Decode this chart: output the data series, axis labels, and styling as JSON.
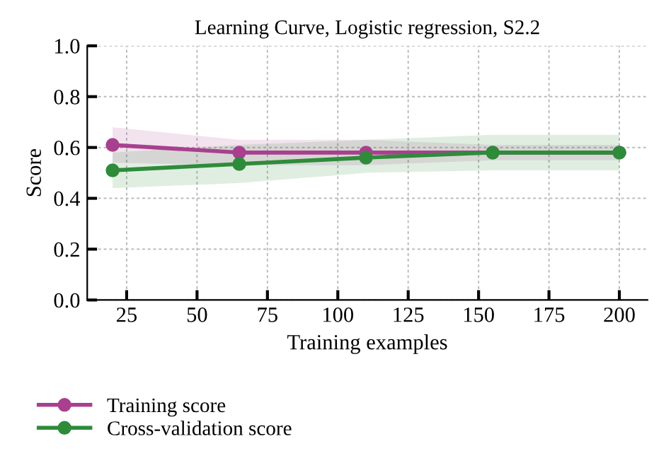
{
  "chart_data": {
    "type": "line",
    "title": "Learning Curve, Logistic regression, S2.2",
    "xlabel": "Training examples",
    "ylabel": "Score",
    "x": [
      20,
      65,
      110,
      155,
      200
    ],
    "series": [
      {
        "name": "Training score",
        "color": "#a8408f",
        "values": [
          0.61,
          0.58,
          0.58,
          0.58,
          0.58
        ],
        "lower": [
          0.54,
          0.53,
          0.53,
          0.55,
          0.55
        ],
        "upper": [
          0.68,
          0.63,
          0.63,
          0.61,
          0.61
        ]
      },
      {
        "name": "Cross-validation score",
        "color": "#2e8b3a",
        "values": [
          0.51,
          0.535,
          0.56,
          0.58,
          0.58
        ],
        "lower": [
          0.44,
          0.46,
          0.5,
          0.51,
          0.51
        ],
        "upper": [
          0.58,
          0.61,
          0.63,
          0.65,
          0.65
        ]
      }
    ],
    "xlim": [
      11,
      210
    ],
    "xticks": [
      25,
      50,
      75,
      100,
      125,
      150,
      175,
      200
    ],
    "ylim": [
      0,
      1.0
    ],
    "yticks": [
      {
        "value": 0,
        "label": "0.0"
      },
      {
        "value": 0.2,
        "label": "0.2"
      },
      {
        "value": 0.4,
        "label": "0.4"
      },
      {
        "value": 0.6,
        "label": "0.6"
      },
      {
        "value": 0.8,
        "label": "0.8"
      },
      {
        "value": 1.0,
        "label": "1.0"
      }
    ],
    "grid": true,
    "legend": "bottom",
    "marker": "circle",
    "line_style": "solid"
  }
}
